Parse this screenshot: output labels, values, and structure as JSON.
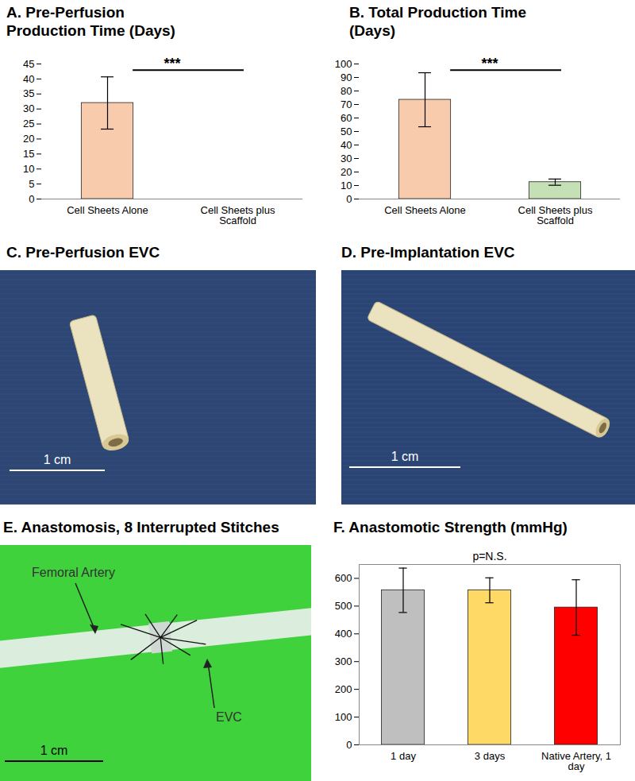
{
  "chart_data": [
    {
      "type": "bar",
      "title": "A. Pre-Perfusion\nProduction Time (Days)",
      "categories": [
        "Cell Sheets Alone",
        "Cell Sheets plus Scaffold"
      ],
      "values": [
        32,
        0
      ],
      "errors": [
        8.7,
        null
      ],
      "colors": [
        "#f8cbad",
        "#c5e0b4"
      ],
      "ylim": [
        0,
        45
      ],
      "yticks": [
        0,
        5,
        10,
        15,
        20,
        25,
        30,
        35,
        40,
        45
      ],
      "significance": "***",
      "grid": false
    },
    {
      "type": "bar",
      "title": "B. Total Production Time\n(Days)",
      "categories": [
        "Cell Sheets Alone",
        "Cell Sheets plus Scaffold"
      ],
      "values": [
        73.5,
        12.5
      ],
      "errors": [
        20,
        2.3
      ],
      "colors": [
        "#f8cbad",
        "#c5e0b4"
      ],
      "ylim": [
        0,
        100
      ],
      "yticks": [
        0,
        10,
        20,
        30,
        40,
        50,
        60,
        70,
        80,
        90,
        100
      ],
      "significance": "***",
      "grid": false
    },
    {
      "type": "bar",
      "title": "F. Anastomotic Strength (mmHg)",
      "categories": [
        "1 day",
        "3 days",
        "Native Artery, 1 day"
      ],
      "values": [
        557,
        557,
        495
      ],
      "errors": [
        80,
        45,
        100
      ],
      "colors": [
        "#bfbfbf",
        "#ffd966",
        "#ff0000"
      ],
      "ylim": [
        0,
        650
      ],
      "yticks": [
        0,
        100,
        200,
        300,
        400,
        500,
        600
      ],
      "annotation": "p=N.S.",
      "grid": false
    }
  ],
  "images": [
    {
      "title": "C. Pre-Perfusion EVC",
      "scale_bar": "1 cm"
    },
    {
      "title": "D. Pre-Implantation EVC",
      "scale_bar": "1 cm"
    },
    {
      "title": "E. Anastomosis, 8 Interrupted Stitches",
      "scale_bar": "1 cm",
      "labels": [
        "Femoral Artery",
        "EVC"
      ]
    }
  ]
}
